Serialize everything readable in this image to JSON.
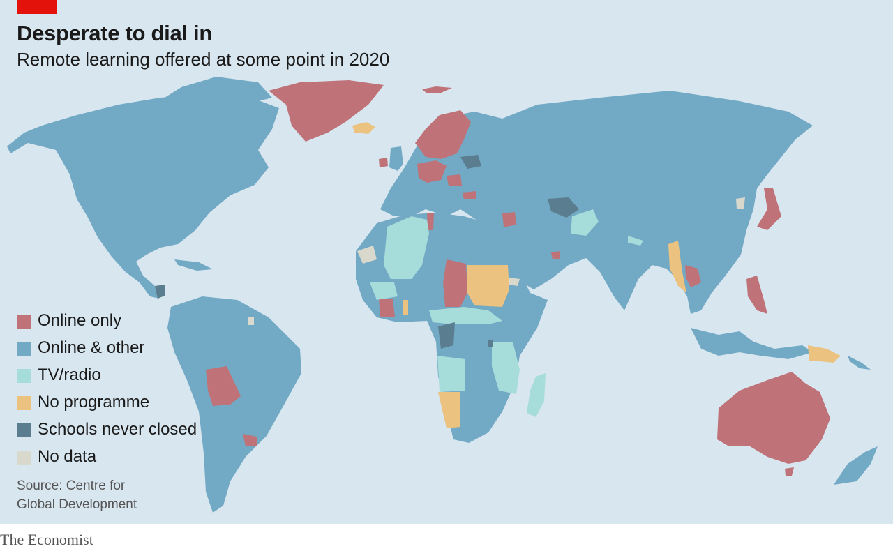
{
  "title": "Desperate to dial in",
  "subtitle": "Remote learning offered at some point in 2020",
  "source_line1": "Source: Centre for",
  "source_line2": "Global Development",
  "brand": "The Economist",
  "colors": {
    "online_only": "#bf7379",
    "online_other": "#72a9c5",
    "tv_radio": "#a6dcd9",
    "no_programme": "#ebc27f",
    "never_closed": "#5a7d8f",
    "no_data": "#d9d8cc",
    "ocean": "#d8e6ef",
    "accent": "#e3120b"
  },
  "legend": [
    {
      "label": "Online only",
      "color": "#bf7379"
    },
    {
      "label": "Online & other",
      "color": "#72a9c5"
    },
    {
      "label": "TV/radio",
      "color": "#a6dcd9"
    },
    {
      "label": "No programme",
      "color": "#ebc27f"
    },
    {
      "label": "Schools never closed",
      "color": "#5a7d8f"
    },
    {
      "label": "No data",
      "color": "#d9d8cc"
    }
  ]
}
